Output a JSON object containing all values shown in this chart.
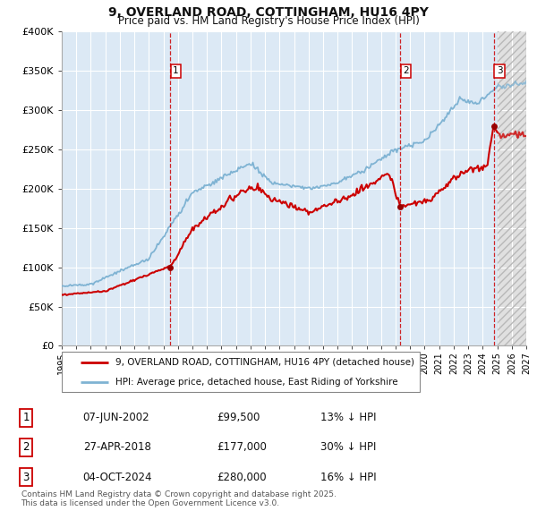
{
  "title": "9, OVERLAND ROAD, COTTINGHAM, HU16 4PY",
  "subtitle": "Price paid vs. HM Land Registry's House Price Index (HPI)",
  "plot_bg_color": "#dce9f5",
  "grid_color": "#ffffff",
  "red_line_color": "#cc0000",
  "blue_line_color": "#7fb3d3",
  "transactions": [
    {
      "num": 1,
      "date_label": "07-JUN-2002",
      "price": 99500,
      "year": 2002.44,
      "hpi_pct": "13% ↓ HPI"
    },
    {
      "num": 2,
      "date_label": "27-APR-2018",
      "price": 177000,
      "year": 2018.32,
      "hpi_pct": "30% ↓ HPI"
    },
    {
      "num": 3,
      "date_label": "04-OCT-2024",
      "price": 280000,
      "year": 2024.75,
      "hpi_pct": "16% ↓ HPI"
    }
  ],
  "ylabel_ticks": [
    0,
    50000,
    100000,
    150000,
    200000,
    250000,
    300000,
    350000,
    400000
  ],
  "ylabel_labels": [
    "£0",
    "£50K",
    "£100K",
    "£150K",
    "£200K",
    "£250K",
    "£300K",
    "£350K",
    "£400K"
  ],
  "xmin": 1995.0,
  "xmax": 2027.0,
  "ymin": 0,
  "ymax": 400000,
  "legend_entries": [
    "9, OVERLAND ROAD, COTTINGHAM, HU16 4PY (detached house)",
    "HPI: Average price, detached house, East Riding of Yorkshire"
  ],
  "footnote": "Contains HM Land Registry data © Crown copyright and database right 2025.\nThis data is licensed under the Open Government Licence v3.0.",
  "future_split_year": 2025.0
}
